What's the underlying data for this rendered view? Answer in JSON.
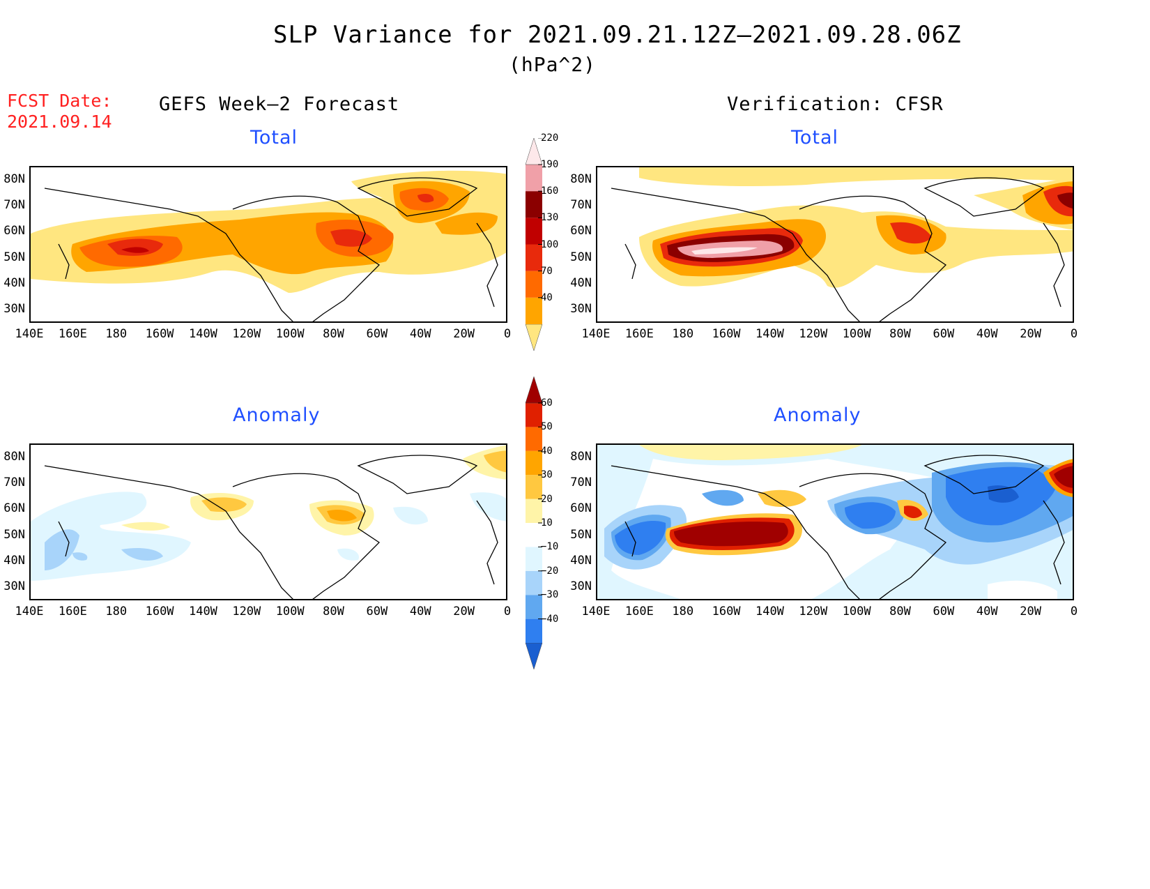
{
  "title": "SLP Variance for 2021.09.21.12Z–2021.09.28.06Z",
  "units": "(hPa^2)",
  "fcst_date": {
    "line1": "FCST Date:",
    "line2": "2021.09.14"
  },
  "columns": {
    "left": "GEFS Week–2 Forecast",
    "right": "Verification: CFSR"
  },
  "panels": {
    "forecast_total": "Total",
    "verif_total": "Total",
    "forecast_anomaly": "Anomaly",
    "verif_anomaly": "Anomaly"
  },
  "axes": {
    "y_ticks": [
      "80N",
      "70N",
      "60N",
      "50N",
      "40N",
      "30N"
    ],
    "x_ticks": [
      "140E",
      "160E",
      "180",
      "160W",
      "140W",
      "120W",
      "100W",
      "80W",
      "60W",
      "40W",
      "20W",
      "0"
    ]
  },
  "colorbar_total": {
    "levels": [
      "40",
      "70",
      "100",
      "130",
      "160",
      "190",
      "220"
    ],
    "colors": [
      "#ffe680",
      "#ffa500",
      "#ff6a00",
      "#e82a0c",
      "#c00000",
      "#8b0000",
      "#f0a0a8",
      "#fde8ea"
    ]
  },
  "colorbar_anomaly": {
    "levels": [
      "−40",
      "−30",
      "−20",
      "−10",
      "10",
      "20",
      "30",
      "40",
      "50",
      "60"
    ],
    "colors": [
      "#1a5fd0",
      "#2f7ff0",
      "#60a8f0",
      "#a8d4fa",
      "#e0f6ff",
      "#ffffff",
      "#fff4a8",
      "#ffc840",
      "#ffa500",
      "#ff6a00",
      "#e02000",
      "#a00000"
    ]
  }
}
